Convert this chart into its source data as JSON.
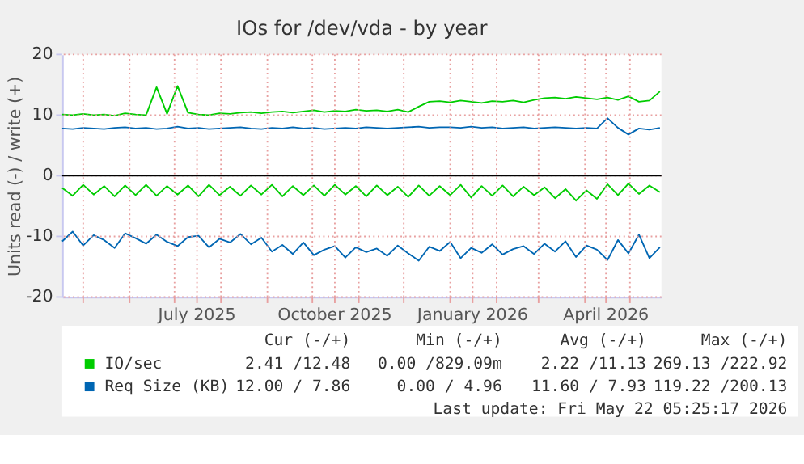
{
  "chart_data": {
    "type": "line",
    "title": "IOs for /dev/vda - by year",
    "ylabel": "Units read (-) / write (+)",
    "x": [
      "2025-04-17",
      "2025-04-24",
      "2025-05-01",
      "2025-05-08",
      "2025-05-15",
      "2025-05-22",
      "2025-05-29",
      "2025-06-05",
      "2025-06-12",
      "2025-06-19",
      "2025-06-26",
      "2025-07-03",
      "2025-07-10",
      "2025-07-17",
      "2025-07-24",
      "2025-07-31",
      "2025-08-07",
      "2025-08-14",
      "2025-08-21",
      "2025-08-28",
      "2025-09-04",
      "2025-09-11",
      "2025-09-18",
      "2025-09-25",
      "2025-10-02",
      "2025-10-09",
      "2025-10-16",
      "2025-10-23",
      "2025-10-30",
      "2025-11-06",
      "2025-11-13",
      "2025-11-20",
      "2025-11-27",
      "2025-12-04",
      "2025-12-11",
      "2025-12-18",
      "2025-12-25",
      "2026-01-01",
      "2026-01-08",
      "2026-01-15",
      "2026-01-22",
      "2026-01-29",
      "2026-02-05",
      "2026-02-12",
      "2026-02-19",
      "2026-02-26",
      "2026-03-05",
      "2026-03-12",
      "2026-03-19",
      "2026-03-26",
      "2026-04-02",
      "2026-04-09",
      "2026-04-16",
      "2026-04-23",
      "2026-04-30",
      "2026-05-07",
      "2026-05-14",
      "2026-05-21"
    ],
    "series": [
      {
        "name": "IO/sec",
        "color": "#00cc00",
        "values": [
          10.1,
          10.0,
          10.2,
          10.0,
          10.1,
          9.9,
          10.3,
          10.1,
          10.0,
          14.6,
          10.2,
          14.8,
          10.4,
          10.1,
          10.0,
          10.3,
          10.2,
          10.4,
          10.5,
          10.3,
          10.5,
          10.6,
          10.4,
          10.6,
          10.8,
          10.5,
          10.7,
          10.6,
          10.9,
          10.7,
          10.8,
          10.6,
          10.9,
          10.5,
          11.4,
          12.2,
          12.3,
          12.1,
          12.4,
          12.2,
          12.0,
          12.3,
          12.2,
          12.4,
          12.1,
          12.5,
          12.8,
          12.9,
          12.7,
          13.0,
          12.8,
          12.6,
          12.9,
          12.5,
          13.1,
          12.2,
          12.4,
          13.9
        ]
      },
      {
        "color": "#00cc00",
        "values": [
          -2.0,
          -3.3,
          -1.5,
          -3.1,
          -1.7,
          -3.4,
          -1.6,
          -3.2,
          -1.5,
          -3.3,
          -1.7,
          -3.1,
          -1.6,
          -3.4,
          -1.5,
          -3.2,
          -1.8,
          -3.3,
          -1.6,
          -3.1,
          -1.5,
          -3.4,
          -1.7,
          -3.2,
          -1.6,
          -3.3,
          -1.5,
          -3.1,
          -1.7,
          -3.4,
          -1.6,
          -3.2,
          -1.8,
          -3.5,
          -1.6,
          -3.3,
          -1.7,
          -3.2,
          -1.5,
          -3.6,
          -1.7,
          -3.3,
          -1.6,
          -3.4,
          -1.8,
          -3.2,
          -1.9,
          -3.7,
          -2.2,
          -4.1,
          -2.4,
          -3.8,
          -1.4,
          -3.2,
          -1.3,
          -3.0,
          -1.6,
          -2.7
        ]
      },
      {
        "name": "Req Size (KB)",
        "color": "#0066b3",
        "values": [
          7.8,
          7.7,
          7.9,
          7.8,
          7.7,
          7.9,
          8.0,
          7.8,
          7.9,
          7.7,
          7.8,
          8.1,
          7.8,
          7.9,
          7.7,
          7.8,
          7.9,
          8.0,
          7.8,
          7.7,
          7.9,
          7.8,
          8.0,
          7.8,
          7.9,
          7.7,
          7.8,
          7.9,
          7.8,
          8.0,
          7.9,
          7.8,
          7.9,
          8.0,
          8.1,
          7.9,
          8.0,
          8.0,
          7.9,
          8.1,
          7.9,
          8.0,
          7.8,
          7.9,
          8.0,
          7.8,
          7.9,
          8.0,
          7.9,
          7.8,
          7.9,
          7.8,
          9.5,
          7.9,
          6.8,
          7.8,
          7.6,
          7.9
        ]
      },
      {
        "color": "#0066b3",
        "values": [
          -10.8,
          -9.2,
          -11.5,
          -9.8,
          -10.6,
          -11.9,
          -9.5,
          -10.3,
          -11.2,
          -9.7,
          -10.9,
          -11.6,
          -10.1,
          -9.9,
          -11.8,
          -10.4,
          -11.0,
          -9.6,
          -11.3,
          -10.2,
          -12.5,
          -11.4,
          -12.9,
          -11.0,
          -13.1,
          -12.2,
          -11.6,
          -13.5,
          -11.8,
          -12.6,
          -12.0,
          -13.2,
          -11.5,
          -12.8,
          -14.0,
          -11.7,
          -12.4,
          -10.9,
          -13.6,
          -11.9,
          -12.7,
          -11.3,
          -13.0,
          -12.1,
          -11.6,
          -12.9,
          -11.2,
          -12.5,
          -10.8,
          -13.4,
          -11.5,
          -12.2,
          -13.9,
          -10.6,
          -12.8,
          -9.7,
          -13.6,
          -11.8
        ]
      }
    ],
    "xlim": [
      "2025-04-17",
      "2026-05-22"
    ],
    "xticks": [
      {
        "value": "2025-05-01",
        "label": null
      },
      {
        "value": "2025-06-01",
        "label": null
      },
      {
        "value": "2025-07-01",
        "label": null
      },
      {
        "value": "2025-07-16",
        "label": "July 2025"
      },
      {
        "value": "2025-08-01",
        "label": null
      },
      {
        "value": "2025-09-01",
        "label": null
      },
      {
        "value": "2025-10-01",
        "label": null
      },
      {
        "value": "2025-10-16",
        "label": "October 2025"
      },
      {
        "value": "2025-11-01",
        "label": null
      },
      {
        "value": "2025-12-01",
        "label": null
      },
      {
        "value": "2026-01-01",
        "label": null
      },
      {
        "value": "2026-01-16",
        "label": "January 2026"
      },
      {
        "value": "2026-02-01",
        "label": null
      },
      {
        "value": "2026-03-01",
        "label": null
      },
      {
        "value": "2026-04-01",
        "label": null
      },
      {
        "value": "2026-04-15",
        "label": "April 2026"
      },
      {
        "value": "2026-05-01",
        "label": null
      }
    ],
    "ylim": [
      -20,
      20
    ],
    "yticks": [
      -20,
      -10,
      0,
      10,
      20
    ],
    "ref_lines": [
      {
        "axis": "y",
        "value": 0,
        "color": "#000000"
      }
    ],
    "grid": true,
    "legend": "bottom",
    "line_style": "solid",
    "annotations": [
      "Cur (-/+)",
      "Min (-/+)",
      "Avg (-/+)",
      "Max (-/+)",
      "2.41 /12.48",
      "0.00 /829.09m",
      "2.22 /11.13",
      "269.13 /222.92",
      "12.00 / 7.86",
      "0.00 / 4.96",
      "11.60 / 7.93",
      "119.22 /200.13",
      "Last update: Fri May 22 05:25:17 2026"
    ]
  }
}
